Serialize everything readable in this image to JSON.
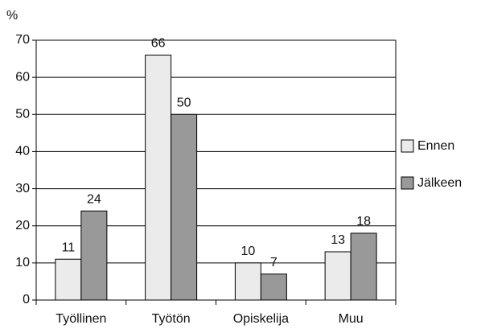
{
  "chart_data": {
    "type": "bar",
    "y_label": "%",
    "categories": [
      "Työllinen",
      "Työtön",
      "Opiskelija",
      "Muu"
    ],
    "series": [
      {
        "name": "Ennen",
        "color": "#ebebeb",
        "values": [
          11,
          66,
          10,
          13
        ]
      },
      {
        "name": "Jälkeen",
        "color": "#999999",
        "values": [
          24,
          50,
          7,
          18
        ]
      }
    ],
    "ylim": [
      0,
      70
    ],
    "yticks": [
      0,
      10,
      20,
      30,
      40,
      50,
      60,
      70
    ],
    "grid": true,
    "legend": "right"
  }
}
